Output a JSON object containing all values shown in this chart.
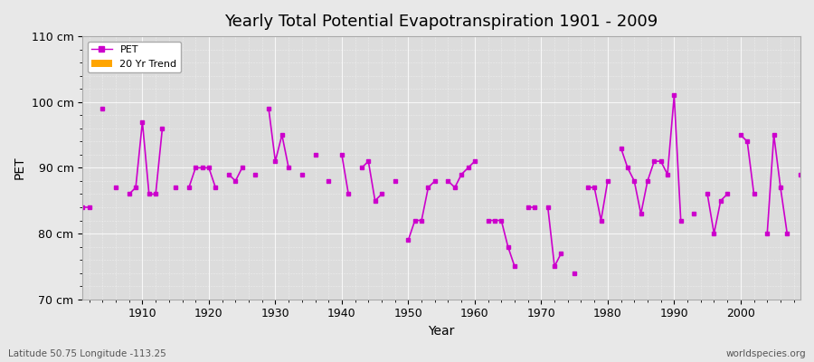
{
  "title": "Yearly Total Potential Evapotranspiration 1901 - 2009",
  "xlabel": "Year",
  "ylabel": "PET",
  "bottom_left_label": "Latitude 50.75 Longitude -113.25",
  "bottom_right_label": "worldspecies.org",
  "ylim": [
    70,
    110
  ],
  "yticks": [
    70,
    80,
    90,
    100,
    110
  ],
  "ytick_labels": [
    "70 cm",
    "80 cm",
    "90 cm",
    "100 cm",
    "110 cm"
  ],
  "xlim": [
    1901,
    2009
  ],
  "pet_color": "#CC00CC",
  "trend_color": "#FFA500",
  "bg_color": "#E8E8E8",
  "plot_bg_color": "#DCDCDC",
  "legend_entries": [
    "PET",
    "20 Yr Trend"
  ],
  "years": [
    1901,
    1902,
    1904,
    1906,
    1908,
    1909,
    1910,
    1911,
    1912,
    1913,
    1915,
    1917,
    1918,
    1919,
    1920,
    1921,
    1923,
    1924,
    1925,
    1927,
    1929,
    1930,
    1931,
    1932,
    1934,
    1936,
    1938,
    1940,
    1941,
    1943,
    1944,
    1945,
    1946,
    1948,
    1950,
    1951,
    1952,
    1953,
    1954,
    1956,
    1957,
    1958,
    1959,
    1960,
    1962,
    1963,
    1964,
    1965,
    1966,
    1968,
    1969,
    1971,
    1972,
    1973,
    1975,
    1977,
    1978,
    1979,
    1980,
    1982,
    1983,
    1984,
    1985,
    1986,
    1987,
    1988,
    1989,
    1990,
    1991,
    1993,
    1995,
    1996,
    1997,
    1998,
    2000,
    2001,
    2002,
    2004,
    2005,
    2006,
    2007,
    2009
  ],
  "pet_values": [
    84,
    84,
    99,
    87,
    86,
    87,
    97,
    86,
    86,
    96,
    87,
    87,
    90,
    90,
    90,
    87,
    89,
    88,
    90,
    89,
    99,
    91,
    95,
    90,
    89,
    92,
    88,
    92,
    86,
    90,
    91,
    85,
    86,
    88,
    79,
    82,
    82,
    87,
    88,
    88,
    87,
    89,
    90,
    91,
    82,
    82,
    82,
    78,
    75,
    84,
    84,
    84,
    75,
    77,
    74,
    87,
    87,
    82,
    88,
    93,
    90,
    88,
    83,
    88,
    91,
    91,
    89,
    101,
    82,
    83,
    86,
    80,
    85,
    86,
    95,
    94,
    86,
    80,
    95,
    87,
    80,
    89
  ]
}
